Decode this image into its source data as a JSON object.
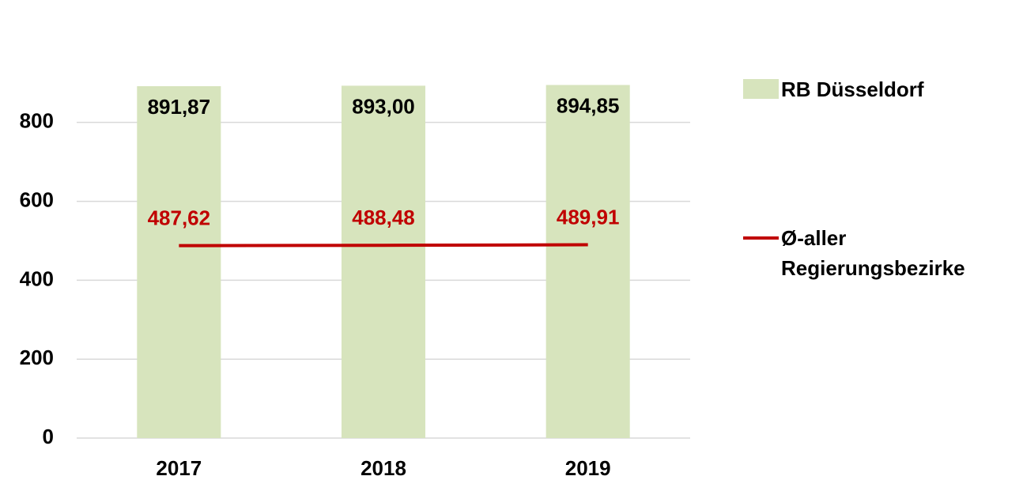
{
  "chart_data": {
    "type": "bar",
    "categories": [
      "2017",
      "2018",
      "2019"
    ],
    "series": [
      {
        "name": "RB Düsseldorf",
        "type": "bar",
        "color": "#d7e4bd",
        "label_color": "#000000",
        "values": [
          891.87,
          893.0,
          894.85
        ],
        "value_labels": [
          "891,87",
          "893,00",
          "894,85"
        ]
      },
      {
        "name": "Ø-aller Regierungsbezirke",
        "type": "line",
        "color": "#c00000",
        "label_color": "#c00000",
        "values": [
          487.62,
          488.48,
          489.91
        ],
        "value_labels": [
          "487,62",
          "488,48",
          "489,91"
        ]
      }
    ],
    "ylim": [
      0,
      1000
    ],
    "yticks": [
      0,
      200,
      400,
      600,
      800
    ],
    "grid": true,
    "legend": "right"
  }
}
